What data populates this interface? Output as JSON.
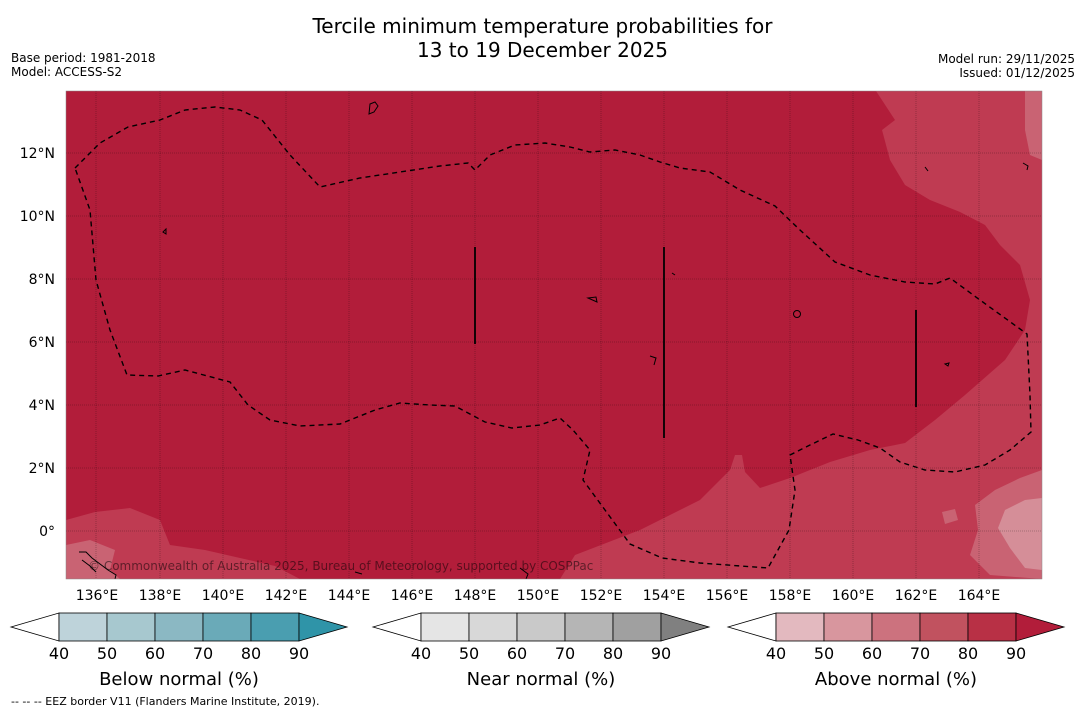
{
  "title": {
    "line1": "Tercile minimum temperature probabilities for",
    "line2": "13 to 19 December 2025"
  },
  "header_left": {
    "base_period": "Base period: 1981-2018",
    "model": "Model: ACCESS-S2"
  },
  "header_right": {
    "model_run": "Model run: 29/11/2025",
    "issued": "Issued: 01/12/2025"
  },
  "map": {
    "lat_labels": [
      "12°N",
      "10°N",
      "8°N",
      "6°N",
      "4°N",
      "2°N",
      "0°"
    ],
    "lon_labels": [
      "136°E",
      "138°E",
      "140°E",
      "142°E",
      "144°E",
      "146°E",
      "148°E",
      "150°E",
      "152°E",
      "154°E",
      "156°E",
      "158°E",
      "160°E",
      "162°E",
      "164°E"
    ],
    "copyright": "© Commonwealth of Australia 2025, Bureau of Meteorology, supported by COSPPac",
    "colors": {
      "dominant_above_80": "#b21d3a",
      "above_70_80": "#bf3b52",
      "above_60_70": "#c96373",
      "above_50_60": "#d58e98"
    }
  },
  "colorbars": [
    {
      "label": "Below normal (%)",
      "ticks": [
        "40",
        "50",
        "60",
        "70",
        "80",
        "90"
      ],
      "colors": [
        "#ffffff",
        "#bed3da",
        "#a7c8cf",
        "#8bb8c3",
        "#6aaab8",
        "#4a9eb0",
        "#2f94a8"
      ]
    },
    {
      "label": "Near normal (%)",
      "ticks": [
        "40",
        "50",
        "60",
        "70",
        "80",
        "90"
      ],
      "colors": [
        "#ffffff",
        "#e5e5e5",
        "#d8d8d8",
        "#c9c9c9",
        "#b5b5b5",
        "#a0a0a0",
        "#808080"
      ]
    },
    {
      "label": "Above normal (%)",
      "ticks": [
        "40",
        "50",
        "60",
        "70",
        "80",
        "90"
      ],
      "colors": [
        "#ffffff",
        "#e3b9bf",
        "#d8969e",
        "#cc727e",
        "#c1525f",
        "#b83045",
        "#b21d3a"
      ]
    }
  ],
  "footnote": "--  --  -- EEZ border V11 (Flanders Marine Institute, 2019)."
}
